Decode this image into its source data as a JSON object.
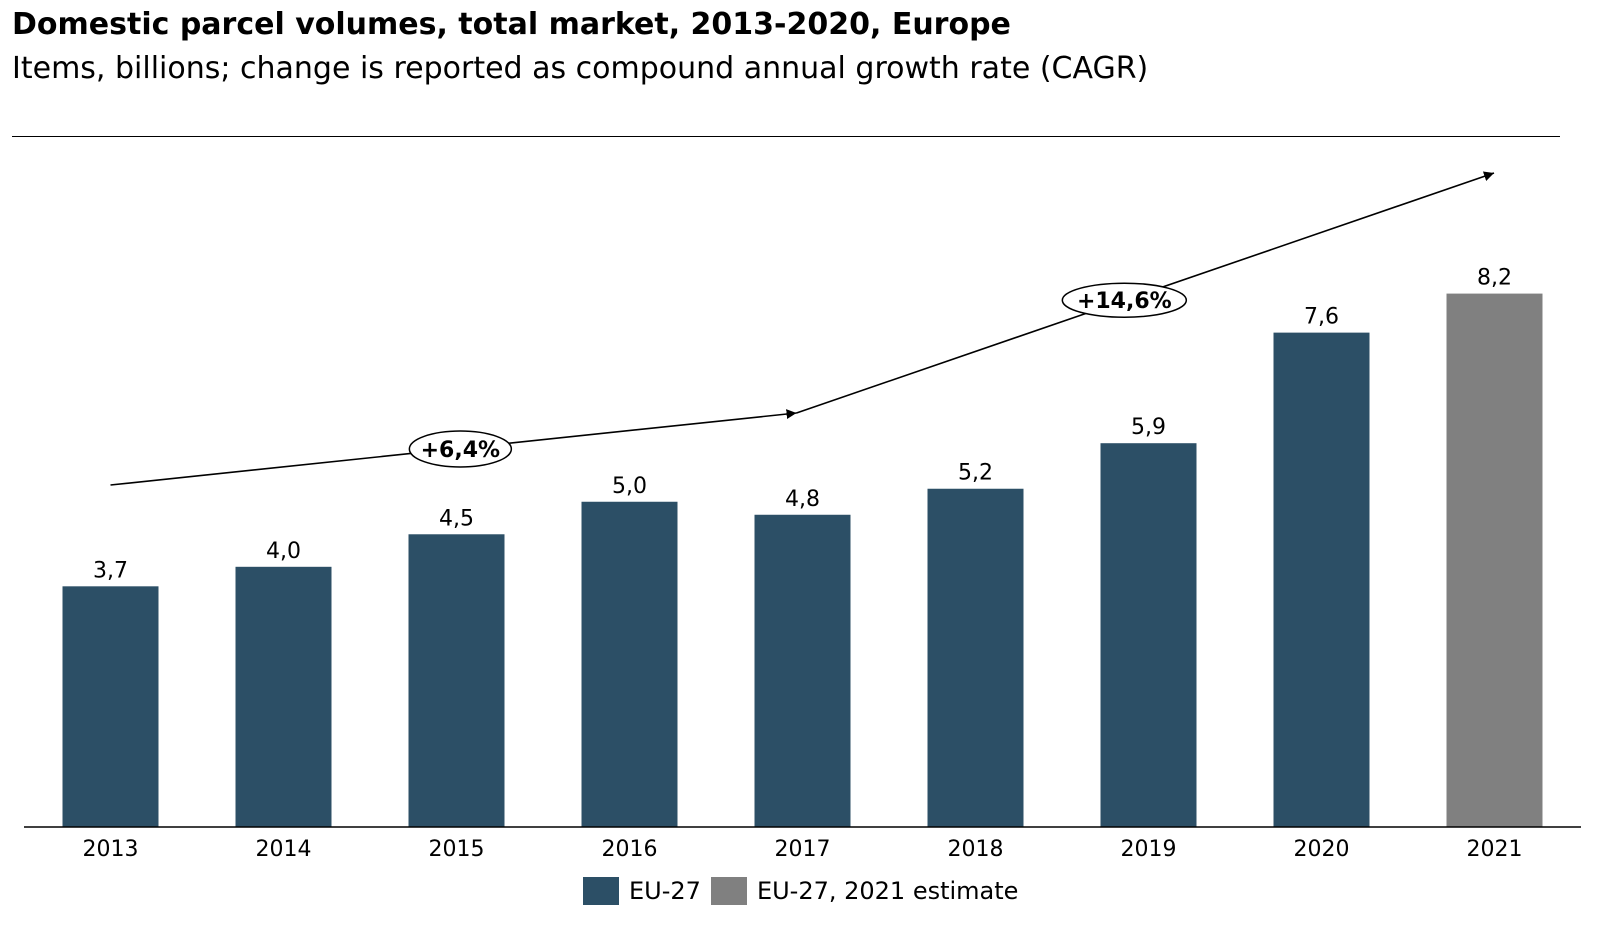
{
  "chart_data": {
    "type": "bar",
    "title": "Domestic parcel volumes, total market, 2013-2020, Europe",
    "subtitle": "Items, billions; change is reported as compound annual growth rate (CAGR)",
    "xlabel": "",
    "ylabel": "",
    "ylim": [
      0,
      10.1
    ],
    "grid": false,
    "categories": [
      "2013",
      "2014",
      "2015",
      "2016",
      "2017",
      "2018",
      "2019",
      "2020",
      "2021"
    ],
    "values": [
      3.7,
      4.0,
      4.5,
      5.0,
      4.8,
      5.2,
      5.9,
      7.6,
      8.2
    ],
    "value_labels": [
      "3,7",
      "4,0",
      "4,5",
      "5,0",
      "4,8",
      "5,2",
      "5,9",
      "7,6",
      "8,2"
    ],
    "series_index": [
      0,
      0,
      0,
      0,
      0,
      0,
      0,
      0,
      1
    ],
    "series": [
      {
        "name": "EU-27",
        "color": "#2c4f66"
      },
      {
        "name": "EU-27, 2021 estimate",
        "color": "#808080"
      }
    ],
    "legend_position": "bottom",
    "annotations": [
      {
        "label": "+6,4%",
        "from": "2013",
        "to": "2017"
      },
      {
        "label": "+14,6%",
        "from": "2017",
        "to": "2021"
      }
    ]
  }
}
